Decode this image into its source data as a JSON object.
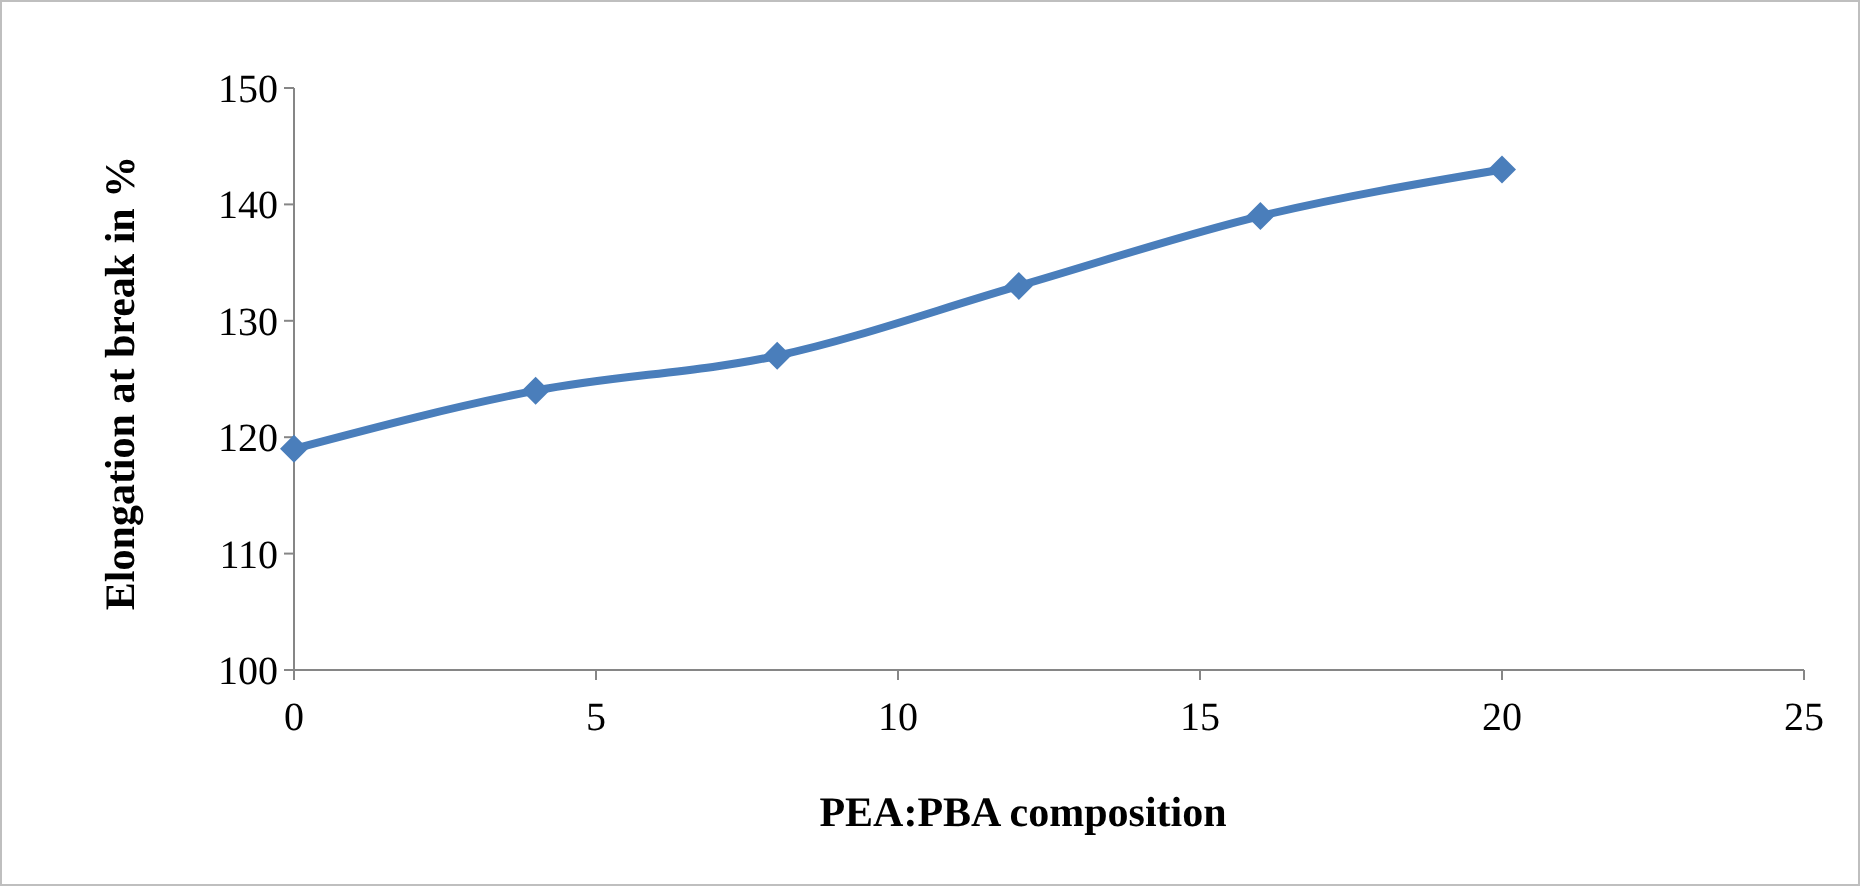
{
  "chart_data": {
    "type": "line",
    "xlabel": "PEA:PBA composition",
    "ylabel": "Elongation at break in %",
    "x": [
      0,
      4,
      8,
      12,
      16,
      20
    ],
    "series": [
      {
        "color": "#4a7ebb",
        "values": [
          119,
          124,
          127,
          133,
          139,
          143
        ]
      }
    ],
    "xlim": [
      0,
      25
    ],
    "xticks": [
      0,
      5,
      10,
      15,
      20,
      25
    ],
    "ylim": [
      100,
      150
    ],
    "yticks": [
      100,
      110,
      120,
      130,
      140,
      150
    ],
    "marker": "diamond",
    "line_style": "solid"
  }
}
